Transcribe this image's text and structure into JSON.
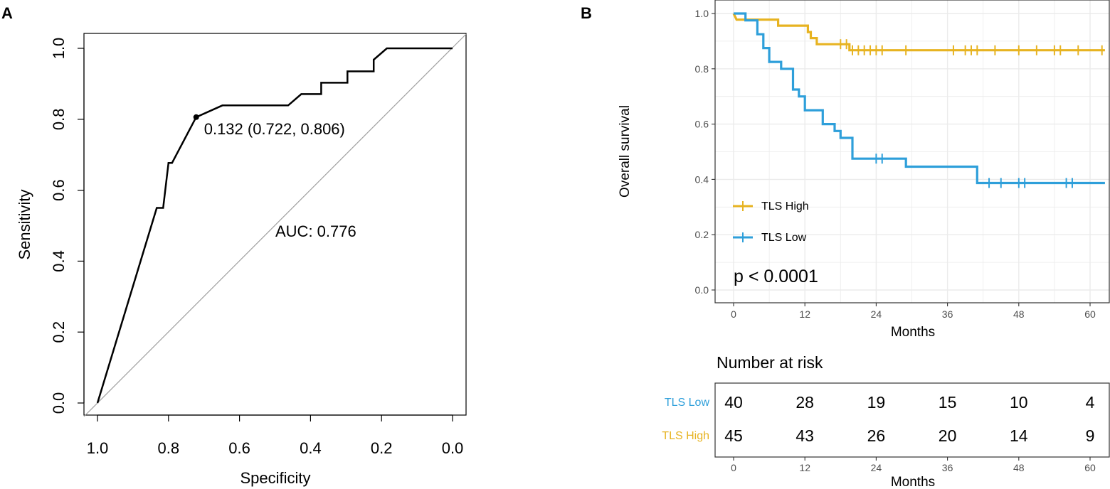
{
  "panel_a": {
    "letter": "A"
  },
  "panel_b": {
    "letter": "B"
  },
  "colors": {
    "high": "#E7B321",
    "low": "#2E9FDA",
    "roc": "#000000",
    "diagonal": "#a0a0a0",
    "grid": "#ebebeb"
  },
  "chart_data": [
    {
      "id": "roc",
      "type": "line",
      "title": "",
      "xlabel": "Specificity",
      "ylabel": "Sensitivity",
      "xlim": [
        1.0,
        0.0
      ],
      "ylim": [
        0.0,
        1.0
      ],
      "xticks": [
        "1.0",
        "0.8",
        "0.6",
        "0.4",
        "0.2",
        "0.0"
      ],
      "yticks": [
        "0.0",
        "0.2",
        "0.4",
        "0.6",
        "0.8",
        "1.0"
      ],
      "curve": [
        [
          1.0,
          0.0
        ],
        [
          0.833,
          0.55
        ],
        [
          0.815,
          0.55
        ],
        [
          0.8,
          0.677
        ],
        [
          0.79,
          0.677
        ],
        [
          0.722,
          0.806
        ],
        [
          0.648,
          0.839
        ],
        [
          0.463,
          0.839
        ],
        [
          0.426,
          0.871
        ],
        [
          0.37,
          0.871
        ],
        [
          0.37,
          0.903
        ],
        [
          0.296,
          0.903
        ],
        [
          0.296,
          0.935
        ],
        [
          0.222,
          0.935
        ],
        [
          0.222,
          0.968
        ],
        [
          0.185,
          1.0
        ],
        [
          0.0,
          1.0
        ]
      ],
      "threshold_point": {
        "spec": 0.722,
        "sens": 0.806,
        "label": "0.132 (0.722, 0.806)"
      },
      "auc_label": "AUC: 0.776"
    },
    {
      "id": "km",
      "type": "line",
      "title": "",
      "xlabel": "Months",
      "ylabel": "Overall survival",
      "xlim": [
        -2,
        62.5
      ],
      "ylim": [
        -0.05,
        1.03
      ],
      "xticks": [
        0,
        12,
        24,
        36,
        48,
        60
      ],
      "yticks": [
        "0.0",
        "0.2",
        "0.4",
        "0.6",
        "0.8",
        "1.0"
      ],
      "pvalue": "p < 0.0001",
      "series": [
        {
          "name": "TLS High",
          "color": "#E7B321",
          "steps": [
            [
              0,
              1.0
            ],
            [
              0.5,
              0.978
            ],
            [
              7.5,
              0.978
            ],
            [
              7.5,
              0.956
            ],
            [
              12.5,
              0.956
            ],
            [
              12.5,
              0.933
            ],
            [
              13,
              0.933
            ],
            [
              13,
              0.911
            ],
            [
              14,
              0.911
            ],
            [
              14,
              0.889
            ],
            [
              19.5,
              0.889
            ],
            [
              19.5,
              0.867
            ],
            [
              62.5,
              0.867
            ]
          ],
          "censor_times": [
            18,
            19,
            20,
            21,
            22,
            23,
            24,
            25,
            29,
            37,
            39,
            40,
            41,
            44,
            48,
            51,
            54,
            55,
            58,
            62
          ],
          "censor_values": [
            0.889,
            0.889,
            0.867,
            0.867,
            0.867,
            0.867,
            0.867,
            0.867,
            0.867,
            0.867,
            0.867,
            0.867,
            0.867,
            0.867,
            0.867,
            0.867,
            0.867,
            0.867,
            0.867,
            0.867
          ]
        },
        {
          "name": "TLS Low",
          "color": "#2E9FDA",
          "steps": [
            [
              0,
              1.0
            ],
            [
              2,
              1.0
            ],
            [
              2,
              0.975
            ],
            [
              4,
              0.975
            ],
            [
              4,
              0.925
            ],
            [
              5,
              0.925
            ],
            [
              5,
              0.875
            ],
            [
              6,
              0.875
            ],
            [
              6,
              0.825
            ],
            [
              8,
              0.825
            ],
            [
              8,
              0.8
            ],
            [
              10,
              0.8
            ],
            [
              10,
              0.725
            ],
            [
              11,
              0.725
            ],
            [
              11,
              0.7
            ],
            [
              12,
              0.7
            ],
            [
              12,
              0.65
            ],
            [
              15,
              0.65
            ],
            [
              15,
              0.6
            ],
            [
              17,
              0.6
            ],
            [
              17,
              0.575
            ],
            [
              18,
              0.575
            ],
            [
              18,
              0.55
            ],
            [
              20,
              0.55
            ],
            [
              20,
              0.475
            ],
            [
              29,
              0.475
            ],
            [
              29,
              0.446
            ],
            [
              41,
              0.446
            ],
            [
              41,
              0.387
            ],
            [
              62.5,
              0.387
            ]
          ],
          "censor_times": [
            24,
            25,
            43,
            45,
            48,
            49,
            56,
            57
          ],
          "censor_values": [
            0.475,
            0.475,
            0.387,
            0.387,
            0.387,
            0.387,
            0.387,
            0.387
          ]
        }
      ],
      "risk_table": {
        "title": "Number at risk",
        "xlabel": "Months",
        "xticks": [
          "0",
          "12",
          "24",
          "36",
          "48",
          "60"
        ],
        "rows": [
          {
            "label": "TLS Low",
            "color": "#2E9FDA",
            "values": [
              "40",
              "28",
              "19",
              "15",
              "10",
              "4"
            ]
          },
          {
            "label": "TLS High",
            "color": "#E7B321",
            "values": [
              "45",
              "43",
              "26",
              "20",
              "14",
              "9"
            ]
          }
        ]
      }
    }
  ]
}
